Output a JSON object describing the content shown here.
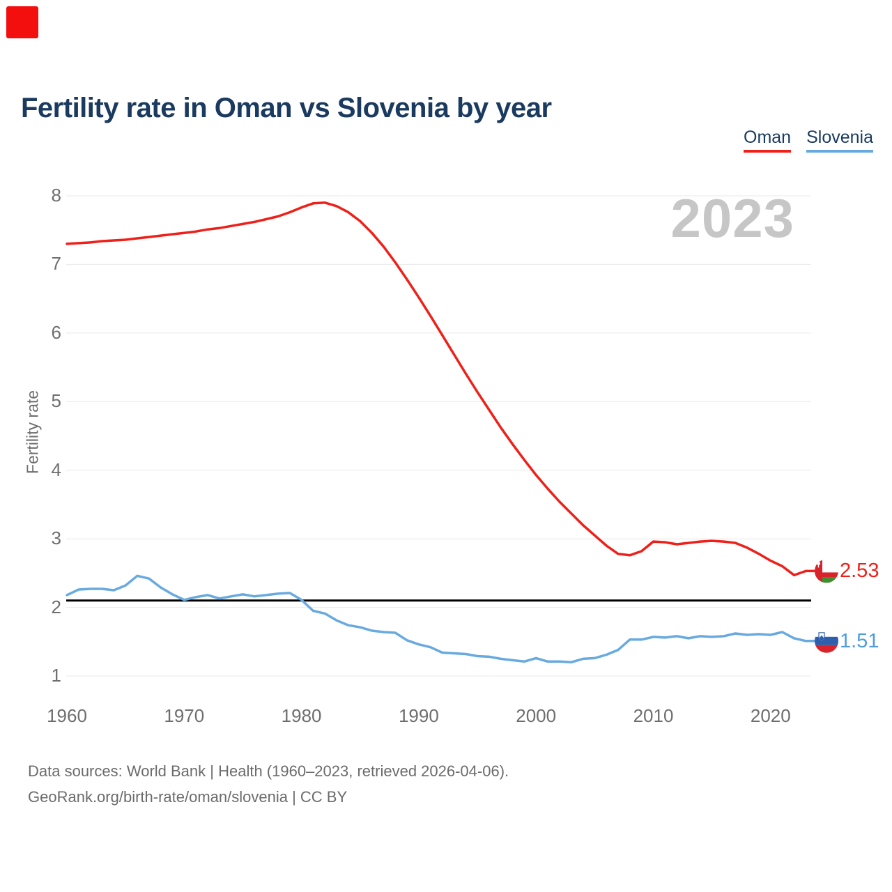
{
  "title": "Fertility rate in Oman vs Slovenia by year",
  "watermark": "2023",
  "corner_marker": {
    "color": "#f40f0f"
  },
  "legend": [
    {
      "label": "Oman",
      "color": "#ee2019"
    },
    {
      "label": "Slovenia",
      "color": "#68aae0"
    }
  ],
  "y_axis_title": "Fertility rate",
  "end_labels": [
    {
      "series": "Oman",
      "value": "2.53",
      "color": "#ee2019",
      "flag": "oman-flag"
    },
    {
      "series": "Slovenia",
      "value": "1.51",
      "color": "#4f9ce0",
      "flag": "slovenia-flag"
    }
  ],
  "footer": {
    "line1": "Data sources: World Bank | Health (1960–2023, retrieved 2026-04-06).",
    "line2": "GeoRank.org/birth-rate/oman/slovenia | CC BY"
  },
  "colors": {
    "grid": "#e9e9e9",
    "tick_text": "#6e6e6e",
    "title_text": "#1a3a5f",
    "reference_line": "#000000"
  },
  "chart_data": {
    "type": "line",
    "title": "Fertility rate in Oman vs Slovenia by year",
    "xlabel": "",
    "ylabel": "Fertility rate",
    "ylim": [
      1,
      8
    ],
    "y_ticks": [
      1,
      2,
      3,
      4,
      5,
      6,
      7,
      8
    ],
    "x_ticks": [
      1960,
      1970,
      1980,
      1990,
      2000,
      2010,
      2020
    ],
    "grid": "horizontal",
    "legend_position": "top-right",
    "reference_line_value": 2.1,
    "years": [
      1960,
      1961,
      1962,
      1963,
      1964,
      1965,
      1966,
      1967,
      1968,
      1969,
      1970,
      1971,
      1972,
      1973,
      1974,
      1975,
      1976,
      1977,
      1978,
      1979,
      1980,
      1981,
      1982,
      1983,
      1984,
      1985,
      1986,
      1987,
      1988,
      1989,
      1990,
      1991,
      1992,
      1993,
      1994,
      1995,
      1996,
      1997,
      1998,
      1999,
      2000,
      2001,
      2002,
      2003,
      2004,
      2005,
      2006,
      2007,
      2008,
      2009,
      2010,
      2011,
      2012,
      2013,
      2014,
      2015,
      2016,
      2017,
      2018,
      2019,
      2020,
      2021,
      2022,
      2023
    ],
    "series": [
      {
        "name": "Oman",
        "color": "#ee2019",
        "end_value": 2.53,
        "values": [
          7.3,
          7.31,
          7.32,
          7.34,
          7.35,
          7.36,
          7.38,
          7.4,
          7.42,
          7.44,
          7.46,
          7.48,
          7.51,
          7.53,
          7.56,
          7.59,
          7.62,
          7.66,
          7.7,
          7.76,
          7.83,
          7.89,
          7.9,
          7.85,
          7.76,
          7.63,
          7.46,
          7.26,
          7.03,
          6.78,
          6.52,
          6.25,
          5.97,
          5.69,
          5.41,
          5.14,
          4.88,
          4.62,
          4.38,
          4.15,
          3.93,
          3.73,
          3.54,
          3.37,
          3.2,
          3.05,
          2.9,
          2.78,
          2.76,
          2.82,
          2.96,
          2.95,
          2.92,
          2.94,
          2.96,
          2.97,
          2.96,
          2.94,
          2.87,
          2.78,
          2.68,
          2.6,
          2.47,
          2.53
        ]
      },
      {
        "name": "Slovenia",
        "color": "#68aae0",
        "end_value": 1.51,
        "values": [
          2.18,
          2.26,
          2.27,
          2.27,
          2.25,
          2.32,
          2.46,
          2.42,
          2.29,
          2.19,
          2.11,
          2.15,
          2.18,
          2.13,
          2.16,
          2.19,
          2.16,
          2.18,
          2.2,
          2.21,
          2.11,
          1.95,
          1.91,
          1.81,
          1.74,
          1.71,
          1.66,
          1.64,
          1.63,
          1.52,
          1.46,
          1.42,
          1.34,
          1.33,
          1.32,
          1.29,
          1.28,
          1.25,
          1.23,
          1.21,
          1.26,
          1.21,
          1.21,
          1.2,
          1.25,
          1.26,
          1.31,
          1.38,
          1.53,
          1.53,
          1.57,
          1.56,
          1.58,
          1.55,
          1.58,
          1.57,
          1.58,
          1.62,
          1.6,
          1.61,
          1.6,
          1.64,
          1.55,
          1.51
        ]
      }
    ]
  }
}
